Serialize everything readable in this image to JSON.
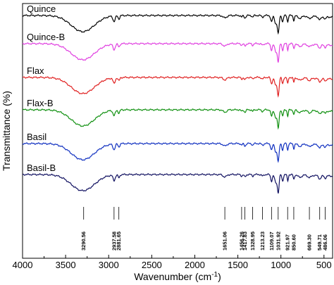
{
  "chart_data": {
    "type": "line",
    "xlabel": "Wavenumber (cm",
    "xlabel_sup": "-1",
    "xlabel_close": ")",
    "ylabel": "Transmittance (%)",
    "xlim": [
      4000,
      400
    ],
    "x_reversed": true,
    "x_ticks": [
      "4000",
      "3500",
      "3000",
      "2500",
      "2000",
      "1500",
      "1000",
      "500"
    ],
    "x_tick_values": [
      4000,
      3500,
      3000,
      2500,
      2000,
      1500,
      1000,
      500
    ],
    "y_ticks_shown": false,
    "series": [
      {
        "name": "Quince",
        "color": "#000000"
      },
      {
        "name": "Quince-B",
        "color": "#e040e0"
      },
      {
        "name": "Flax",
        "color": "#e02020"
      },
      {
        "name": "Flax-B",
        "color": "#109010"
      },
      {
        "name": "Basil",
        "color": "#1030c0"
      },
      {
        "name": "Basil-B",
        "color": "#101060"
      }
    ],
    "peaks": [
      "3290.56",
      "2937.58",
      "2881.65",
      "1651.06",
      "1456.26",
      "1417.83",
      "1328.95",
      "1213.23",
      "1109.07",
      "1031.92",
      "921.97",
      "850.60",
      "669.30",
      "549.71",
      "486.06"
    ],
    "peak_values": [
      3290.56,
      2937.58,
      2881.65,
      1651.06,
      1456.26,
      1417.83,
      1328.95,
      1213.23,
      1109.07,
      1031.92,
      921.97,
      850.6,
      669.3,
      549.71,
      486.06
    ]
  }
}
